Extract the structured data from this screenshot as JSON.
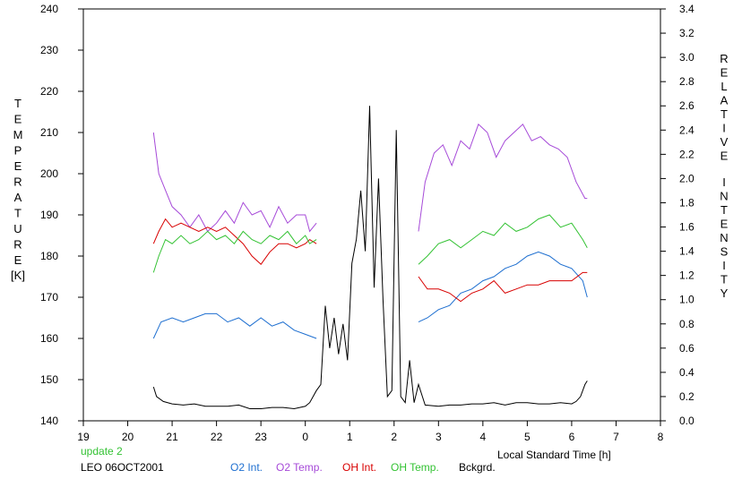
{
  "chart_data": {
    "type": "line",
    "xlabel": "Local Standard Time [h]",
    "ylabel_left": "TEMPERATURE",
    "ylabel_left_unit": "[K]",
    "ylabel_right": "RELATIVE INTENSITY",
    "x_ticks": [
      "19",
      "20",
      "21",
      "22",
      "23",
      "0",
      "1",
      "2",
      "3",
      "4",
      "5",
      "6",
      "7",
      "8"
    ],
    "xlim": [
      19,
      32
    ],
    "ylim_left": [
      140,
      240
    ],
    "ylim_right": [
      0.0,
      3.4
    ],
    "y_left_ticks": [
      140,
      150,
      160,
      170,
      180,
      190,
      200,
      210,
      220,
      230,
      240
    ],
    "y_right_ticks": [
      0.0,
      0.2,
      0.4,
      0.6,
      0.8,
      1.0,
      1.2,
      1.4,
      1.6,
      1.8,
      2.0,
      2.2,
      2.4,
      2.6,
      2.8,
      3.0,
      3.2,
      3.4
    ],
    "y_right_tick_labels": [
      "0.0",
      "0.2",
      "0.4",
      "0.6",
      "0.8",
      "1.0",
      "1.2",
      "1.4",
      "1.6",
      "1.8",
      "2.0",
      "2.2",
      "2.4",
      "2.6",
      "2.8",
      "3.0",
      "3.2",
      "3.4"
    ],
    "series": [
      {
        "name": "O2 Int.",
        "axis": "left",
        "color": "#1e6fd0",
        "x": [
          20.58,
          20.75,
          21.0,
          21.25,
          21.5,
          21.75,
          22.0,
          22.25,
          22.5,
          22.75,
          23.0,
          23.25,
          23.5,
          23.75,
          24.0,
          24.25,
          26.55,
          26.75,
          27.0,
          27.25,
          27.5,
          27.75,
          28.0,
          28.25,
          28.5,
          28.75,
          29.0,
          29.25,
          29.5,
          29.75,
          30.0,
          30.25,
          30.35
        ],
        "y": [
          160,
          164,
          165,
          164,
          165,
          166,
          166,
          164,
          165,
          163,
          165,
          163,
          164,
          162,
          161,
          160,
          164,
          165,
          167,
          168,
          171,
          172,
          174,
          175,
          177,
          178,
          180,
          181,
          180,
          178,
          177,
          174,
          170
        ]
      },
      {
        "name": "O2 Temp.",
        "axis": "left",
        "color": "#a64ad8",
        "x": [
          20.58,
          20.7,
          20.85,
          21.0,
          21.2,
          21.4,
          21.6,
          21.8,
          22.0,
          22.2,
          22.4,
          22.6,
          22.8,
          23.0,
          23.2,
          23.4,
          23.6,
          23.8,
          24.0,
          24.1,
          24.25,
          26.55,
          26.7,
          26.9,
          27.1,
          27.3,
          27.5,
          27.7,
          27.9,
          28.1,
          28.3,
          28.5,
          28.7,
          28.9,
          29.1,
          29.3,
          29.5,
          29.7,
          29.9,
          30.1,
          30.3,
          30.35
        ],
        "y": [
          210,
          200,
          196,
          192,
          190,
          187,
          190,
          186,
          188,
          191,
          188,
          193,
          190,
          191,
          187,
          192,
          188,
          190,
          190,
          186,
          188,
          186,
          198,
          205,
          207,
          202,
          208,
          206,
          212,
          210,
          204,
          208,
          210,
          212,
          208,
          209,
          207,
          206,
          204,
          198,
          194,
          194
        ]
      },
      {
        "name": "OH Int.",
        "axis": "left",
        "color": "#d80000",
        "x": [
          20.58,
          20.7,
          20.85,
          21.0,
          21.2,
          21.4,
          21.6,
          21.8,
          22.0,
          22.2,
          22.4,
          22.6,
          22.8,
          23.0,
          23.2,
          23.4,
          23.6,
          23.8,
          24.0,
          24.1,
          24.25,
          26.55,
          26.75,
          27.0,
          27.25,
          27.5,
          27.75,
          28.0,
          28.25,
          28.5,
          28.75,
          29.0,
          29.25,
          29.5,
          29.75,
          30.0,
          30.25,
          30.35
        ],
        "y": [
          183,
          186,
          189,
          187,
          188,
          187,
          186,
          187,
          186,
          187,
          185,
          183,
          180,
          178,
          181,
          183,
          183,
          182,
          183,
          184,
          183,
          175,
          172,
          172,
          171,
          169,
          171,
          172,
          174,
          171,
          172,
          173,
          173,
          174,
          174,
          174,
          176,
          176
        ]
      },
      {
        "name": "OH Temp.",
        "axis": "left",
        "color": "#33c233",
        "x": [
          20.58,
          20.7,
          20.85,
          21.0,
          21.2,
          21.4,
          21.6,
          21.8,
          22.0,
          22.2,
          22.4,
          22.6,
          22.8,
          23.0,
          23.2,
          23.4,
          23.6,
          23.8,
          24.0,
          24.1,
          24.25,
          26.55,
          26.75,
          27.0,
          27.25,
          27.5,
          27.75,
          28.0,
          28.25,
          28.5,
          28.75,
          29.0,
          29.25,
          29.5,
          29.75,
          30.0,
          30.25,
          30.35
        ],
        "y": [
          176,
          180,
          184,
          183,
          185,
          183,
          184,
          186,
          184,
          185,
          183,
          186,
          184,
          183,
          185,
          184,
          186,
          183,
          185,
          183,
          184,
          178,
          180,
          183,
          184,
          182,
          184,
          186,
          185,
          188,
          186,
          187,
          189,
          190,
          187,
          188,
          184,
          182
        ]
      },
      {
        "name": "Bckgrd.",
        "axis": "right",
        "color": "#000000",
        "x": [
          20.58,
          20.65,
          20.8,
          21.0,
          21.25,
          21.5,
          21.75,
          22.0,
          22.25,
          22.5,
          22.75,
          23.0,
          23.25,
          23.5,
          23.75,
          24.0,
          24.1,
          24.25,
          24.35,
          24.45,
          24.55,
          24.65,
          24.75,
          24.85,
          24.95,
          25.05,
          25.15,
          25.25,
          25.35,
          25.45,
          25.55,
          25.65,
          25.75,
          25.85,
          25.95,
          26.05,
          26.15,
          26.25,
          26.35,
          26.45,
          26.55,
          26.7,
          27.0,
          27.25,
          27.5,
          27.75,
          28.0,
          28.25,
          28.5,
          28.75,
          29.0,
          29.25,
          29.5,
          29.75,
          30.0,
          30.1,
          30.2,
          30.3,
          30.35
        ],
        "y": [
          0.28,
          0.2,
          0.16,
          0.14,
          0.13,
          0.14,
          0.12,
          0.12,
          0.12,
          0.13,
          0.1,
          0.1,
          0.11,
          0.11,
          0.1,
          0.12,
          0.15,
          0.25,
          0.3,
          0.95,
          0.6,
          0.85,
          0.55,
          0.8,
          0.5,
          1.3,
          1.5,
          1.9,
          1.4,
          2.6,
          1.1,
          2.0,
          1.0,
          0.2,
          0.25,
          2.4,
          0.2,
          0.15,
          0.5,
          0.15,
          0.3,
          0.13,
          0.12,
          0.13,
          0.13,
          0.14,
          0.14,
          0.15,
          0.13,
          0.15,
          0.15,
          0.14,
          0.14,
          0.15,
          0.14,
          0.16,
          0.2,
          0.3,
          0.33
        ]
      }
    ]
  },
  "footer": {
    "update_label": "update 2",
    "station_label": "LEO 06OCT2001",
    "legend": [
      {
        "label": "O2 Int.",
        "color": "#1e6fd0"
      },
      {
        "label": "O2 Temp.",
        "color": "#a64ad8"
      },
      {
        "label": "OH Int.",
        "color": "#d80000"
      },
      {
        "label": "OH Temp.",
        "color": "#33c233"
      },
      {
        "label": "Bckgrd.",
        "color": "#000000"
      }
    ]
  }
}
